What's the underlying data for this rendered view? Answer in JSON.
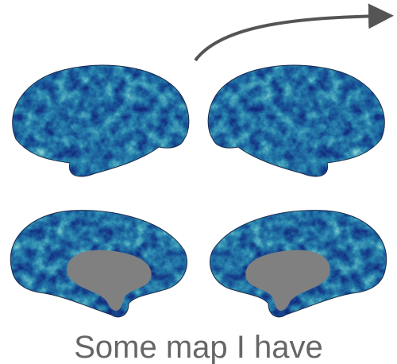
{
  "caption": "Some map I have"
}
